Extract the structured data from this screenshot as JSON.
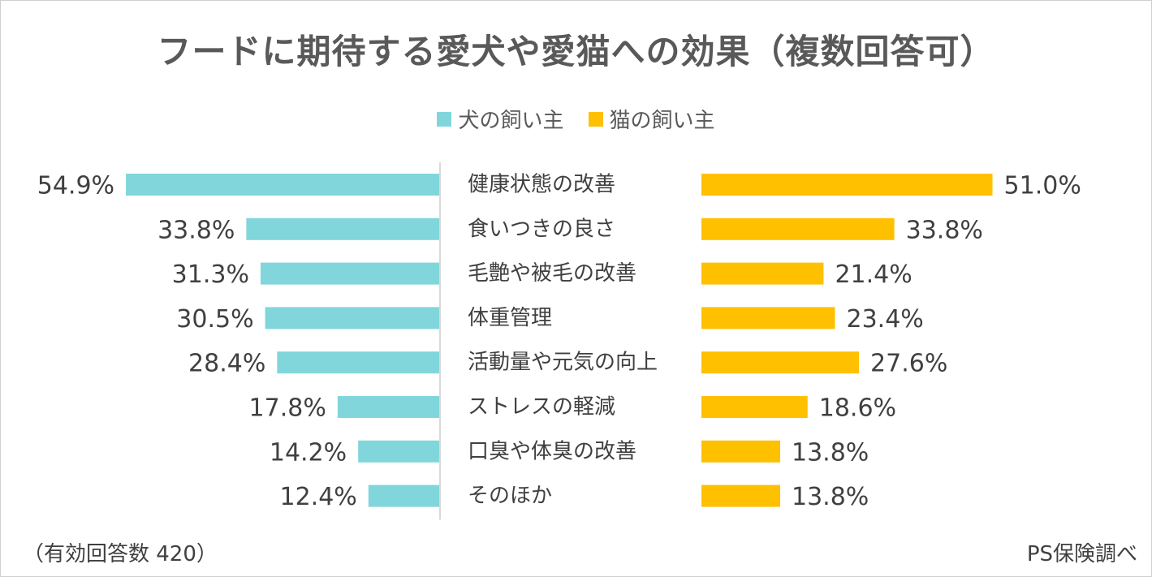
{
  "chart_data": {
    "type": "bar",
    "orientation": "horizontal-butterfly",
    "title": "フードに期待する愛犬や愛猫への効果（複数回答可）",
    "categories": [
      "健康状態の改善",
      "食いつきの良さ",
      "毛艶や被毛の改善",
      "体重管理",
      "活動量や元気の向上",
      "ストレスの軽減",
      "口臭や体臭の改善",
      "そのほか"
    ],
    "series": [
      {
        "name": "犬の飼い主",
        "color": "#80d6db",
        "values": [
          54.9,
          33.8,
          31.3,
          30.5,
          28.4,
          17.8,
          14.2,
          12.4
        ],
        "labels": [
          "54.9%",
          "33.8%",
          "31.3%",
          "30.5%",
          "28.4%",
          "17.8%",
          "14.2%",
          "12.4%"
        ]
      },
      {
        "name": "猫の飼い主",
        "color": "#ffc000",
        "values": [
          51.0,
          33.8,
          21.4,
          23.4,
          27.6,
          18.6,
          13.8,
          13.8
        ],
        "labels": [
          "51.0%",
          "33.8%",
          "21.4%",
          "23.4%",
          "27.6%",
          "18.6%",
          "13.8%",
          "13.8%"
        ]
      }
    ],
    "unit": "%",
    "legend_position": "top-center"
  },
  "footer": {
    "sample_note": "（有効回答数 420）",
    "source": "PS保険調べ"
  }
}
